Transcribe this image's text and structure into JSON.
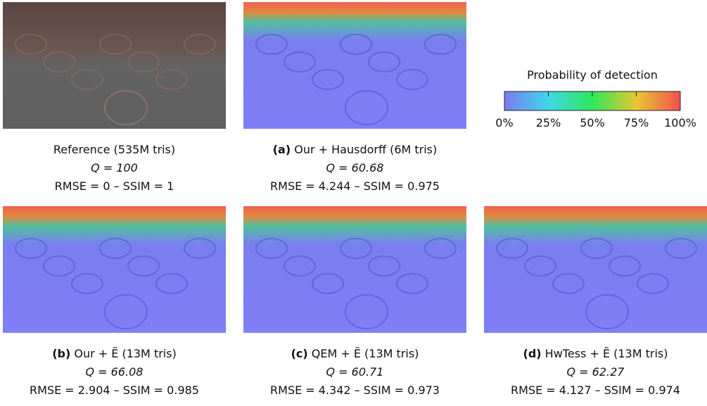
{
  "colorbar": {
    "title": "Probability of detection",
    "ticks": [
      "0%",
      "25%",
      "50%",
      "75%",
      "100%"
    ]
  },
  "panels": [
    {
      "caption": "Reference (535M tris)",
      "quality": "Q = 100",
      "metrics": "RMSE = 0 – SSIM = 1"
    },
    {
      "label": "(a)",
      "caption": "Our + Hausdorff (6M tris)",
      "quality": "Q = 60.68",
      "metrics": "RMSE = 4.244 – SSIM = 0.975"
    },
    {
      "label": "(b)",
      "caption": "Our + Ẽ (13M tris)",
      "quality": "Q = 66.08",
      "metrics": "RMSE = 2.904 – SSIM = 0.985"
    },
    {
      "label": "(c)",
      "caption": "QEM + Ẽ (13M tris)",
      "quality": "Q = 60.71",
      "metrics": "RMSE = 4.342 – SSIM = 0.973"
    },
    {
      "label": "(d)",
      "caption": "HwTess + Ẽ (13M tris)",
      "quality": "Q = 62.27",
      "metrics": "RMSE = 4.127 – SSIM = 0.974"
    }
  ]
}
